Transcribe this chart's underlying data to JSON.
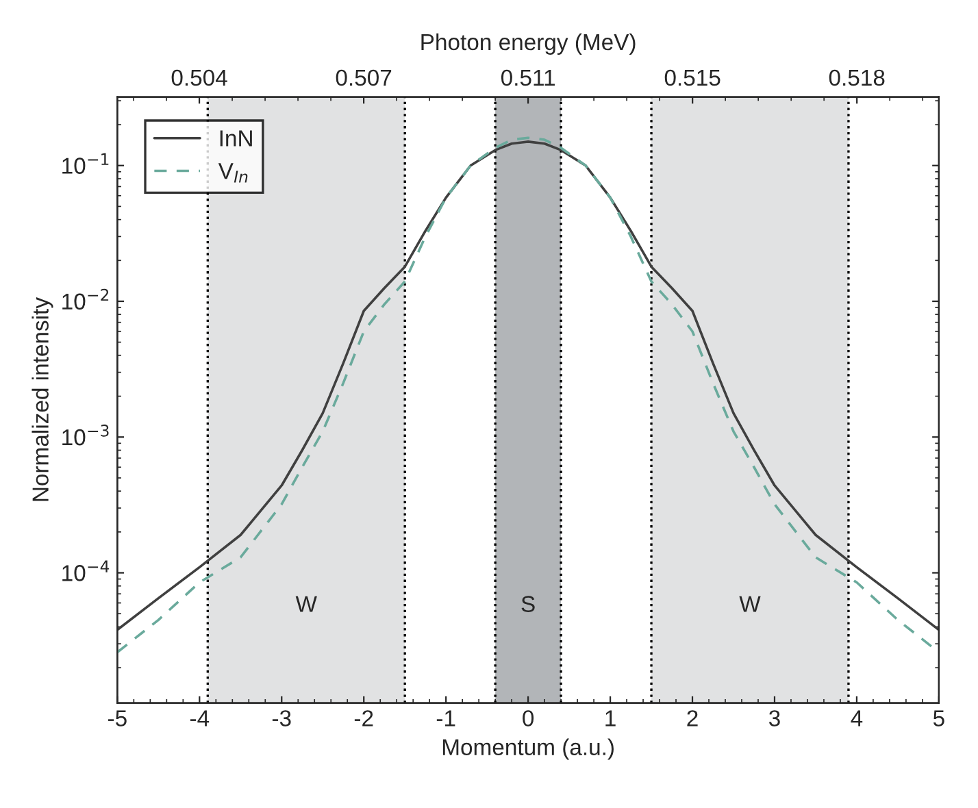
{
  "chart_data": {
    "type": "line",
    "xlabel": "Momentum (a.u.)",
    "ylabel": "Normalized intensity",
    "x2label": "Photon energy (MeV)",
    "x": [
      -5,
      -4.5,
      -4,
      -3.5,
      -3,
      -2.75,
      -2.5,
      -2.25,
      -2,
      -1.75,
      -1.5,
      -1.25,
      -1,
      -0.7,
      -0.4,
      -0.2,
      0,
      0.2,
      0.4,
      0.7,
      1,
      1.25,
      1.5,
      1.75,
      2,
      2.25,
      2.5,
      2.75,
      3,
      3.5,
      4,
      4.5,
      5
    ],
    "series": [
      {
        "name": "InN",
        "color": "#404040",
        "line_style": "solid",
        "values": [
          3.8e-05,
          6.5e-05,
          0.00011,
          0.00019,
          0.00044,
          0.0008,
          0.0015,
          0.0035,
          0.0085,
          0.0125,
          0.018,
          0.033,
          0.058,
          0.1,
          0.13,
          0.145,
          0.15,
          0.145,
          0.13,
          0.1,
          0.058,
          0.033,
          0.018,
          0.0125,
          0.0085,
          0.0035,
          0.0015,
          0.0008,
          0.00044,
          0.00019,
          0.00011,
          6.5e-05,
          3.8e-05
        ]
      },
      {
        "name": "V$_{In}$",
        "color": "#6aaa9c",
        "line_style": "dashed",
        "values": [
          2.6e-05,
          4.5e-05,
          8.5e-05,
          0.00013,
          0.00032,
          0.0006,
          0.0011,
          0.0025,
          0.006,
          0.0095,
          0.014,
          0.03,
          0.058,
          0.1,
          0.135,
          0.155,
          0.16,
          0.155,
          0.135,
          0.1,
          0.058,
          0.03,
          0.014,
          0.0095,
          0.006,
          0.0025,
          0.0011,
          0.0006,
          0.00032,
          0.00013,
          8.5e-05,
          4.5e-05,
          2.6e-05
        ]
      }
    ],
    "log": "y",
    "xlim": [
      -5,
      5
    ],
    "xticks": [
      -5,
      -4,
      -3,
      -2,
      -1,
      0,
      1,
      2,
      3,
      4,
      5
    ],
    "ylim": [
      1.1e-05,
      0.32
    ],
    "yticks": [
      {
        "value": 0.0001,
        "label": "10$^{−4}$"
      },
      {
        "value": 0.001,
        "label": "10$^{−3}$"
      },
      {
        "value": 0.01,
        "label": "10$^{−2}$"
      },
      {
        "value": 0.1,
        "label": "10$^{−1}$"
      }
    ],
    "x2lim": [
      0.50168,
      0.52032
    ],
    "x2ticks": [
      {
        "value": 0.50354,
        "label": "0.504"
      },
      {
        "value": 0.50727,
        "label": "0.507"
      },
      {
        "value": 0.511,
        "label": "0.511"
      },
      {
        "value": 0.51473,
        "label": "0.515"
      },
      {
        "value": 0.51846,
        "label": "0.518"
      }
    ],
    "bands": [
      {
        "axis": "x",
        "from": -3.9,
        "to": -1.5,
        "label": "W",
        "color": "#e1e2e3"
      },
      {
        "axis": "x",
        "from": -0.4,
        "to": 0.4,
        "label": "S",
        "color": "#b2b5b8"
      },
      {
        "axis": "x",
        "from": 1.5,
        "to": 3.9,
        "label": "W",
        "color": "#e1e2e3"
      }
    ],
    "ref_lines": [
      {
        "axis": "x",
        "value": -3.9,
        "color": "#000000",
        "line_style": "dotted"
      },
      {
        "axis": "x",
        "value": -1.5,
        "color": "#000000",
        "line_style": "dotted"
      },
      {
        "axis": "x",
        "value": -0.4,
        "color": "#000000",
        "line_style": "dotted"
      },
      {
        "axis": "x",
        "value": 0.4,
        "color": "#000000",
        "line_style": "dotted"
      },
      {
        "axis": "x",
        "value": 1.5,
        "color": "#000000",
        "line_style": "dotted"
      },
      {
        "axis": "x",
        "value": 3.9,
        "color": "#000000",
        "line_style": "dotted"
      }
    ],
    "legend": "top left",
    "grid": false
  }
}
